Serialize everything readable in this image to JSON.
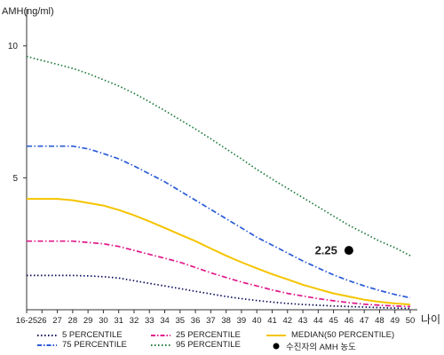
{
  "chart_data": {
    "type": "line",
    "title": "",
    "ylabel": "AMH(ng/ml)",
    "xlabel": "나이",
    "ylim": [
      0,
      11
    ],
    "yticks": [
      5,
      10
    ],
    "categories": [
      "16-25",
      "26",
      "27",
      "28",
      "29",
      "30",
      "31",
      "32",
      "33",
      "34",
      "35",
      "36",
      "37",
      "38",
      "39",
      "40",
      "41",
      "42",
      "43",
      "44",
      "45",
      "46",
      "47",
      "48",
      "49",
      "50"
    ],
    "series": [
      {
        "name": "5 PERCENTILE",
        "color": "#0a0a5a",
        "dash": "dotted",
        "values": [
          1.3,
          1.3,
          1.3,
          1.3,
          1.28,
          1.25,
          1.2,
          1.1,
          1.0,
          0.9,
          0.8,
          0.7,
          0.6,
          0.5,
          0.42,
          0.35,
          0.29,
          0.24,
          0.2,
          0.17,
          0.14,
          0.12,
          0.1,
          0.08,
          0.06,
          0.05
        ]
      },
      {
        "name": "25 PERCENTILE",
        "color": "#e0198a",
        "dash": "dashdot",
        "values": [
          2.6,
          2.6,
          2.6,
          2.6,
          2.55,
          2.5,
          2.4,
          2.25,
          2.1,
          1.95,
          1.8,
          1.6,
          1.4,
          1.22,
          1.05,
          0.9,
          0.75,
          0.62,
          0.52,
          0.42,
          0.34,
          0.27,
          0.21,
          0.17,
          0.14,
          0.12
        ]
      },
      {
        "name": "MEDIAN(50 PERCENTILE)",
        "color": "#f5c400",
        "dash": "solid",
        "values": [
          4.2,
          4.2,
          4.2,
          4.15,
          4.05,
          3.95,
          3.78,
          3.58,
          3.35,
          3.1,
          2.85,
          2.6,
          2.32,
          2.05,
          1.8,
          1.57,
          1.35,
          1.15,
          0.95,
          0.78,
          0.62,
          0.5,
          0.38,
          0.3,
          0.24,
          0.2
        ]
      },
      {
        "name": "75 PERCENTILE",
        "color": "#2a5bd7",
        "dash": "dashdot",
        "values": [
          6.2,
          6.2,
          6.2,
          6.2,
          6.1,
          5.92,
          5.72,
          5.45,
          5.15,
          4.85,
          4.5,
          4.15,
          3.8,
          3.45,
          3.1,
          2.75,
          2.45,
          2.15,
          1.85,
          1.58,
          1.32,
          1.1,
          0.9,
          0.73,
          0.58,
          0.45
        ]
      },
      {
        "name": "95 PERCENTILE",
        "color": "#1e7a3c",
        "dash": "dotted",
        "values": [
          9.6,
          9.45,
          9.3,
          9.15,
          8.95,
          8.72,
          8.48,
          8.2,
          7.88,
          7.55,
          7.2,
          6.85,
          6.48,
          6.1,
          5.72,
          5.32,
          4.95,
          4.6,
          4.25,
          3.9,
          3.55,
          3.2,
          2.9,
          2.6,
          2.35,
          2.05
        ]
      }
    ],
    "annotations": [
      {
        "label": "2.25",
        "x": "46",
        "y": 2.25,
        "marker_color": "#000000"
      }
    ],
    "marker_legend": "수진자의 AMH 농도",
    "grid": false
  }
}
